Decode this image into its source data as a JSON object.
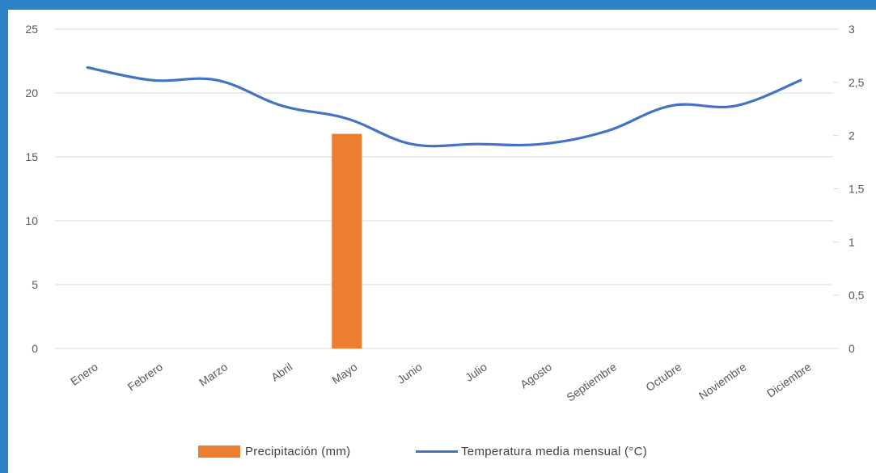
{
  "chart_data": {
    "type": "bar+line",
    "categories": [
      "Enero",
      "Febrero",
      "Marzo",
      "Abril",
      "Mayo",
      "Junio",
      "Julio",
      "Agosto",
      "Septiembre",
      "Octubre",
      "Noviembre",
      "Diciembre"
    ],
    "series": [
      {
        "name": "Precipitación (mm)",
        "type": "bar",
        "axis": "left",
        "color": "#ed7d31",
        "values": [
          0,
          0,
          0,
          0,
          16.8,
          0,
          0,
          0,
          0,
          0,
          0,
          0
        ]
      },
      {
        "name": "Temperatura media mensual (°C)",
        "type": "line",
        "axis": "right",
        "color": "#4472c4",
        "values": [
          2.64,
          2.52,
          2.52,
          2.28,
          2.16,
          1.92,
          1.92,
          1.92,
          2.04,
          2.28,
          2.28,
          2.52
        ]
      }
    ],
    "y_left": {
      "ylim": [
        0,
        25
      ],
      "ticks": [
        "0",
        "5",
        "10",
        "15",
        "20",
        "25"
      ]
    },
    "y_right": {
      "ylim": [
        0,
        3
      ],
      "ticks": [
        "0",
        "0,5",
        "1",
        "1,5",
        "2",
        "2,5",
        "3"
      ]
    },
    "grid": true,
    "legend": "bottom"
  }
}
